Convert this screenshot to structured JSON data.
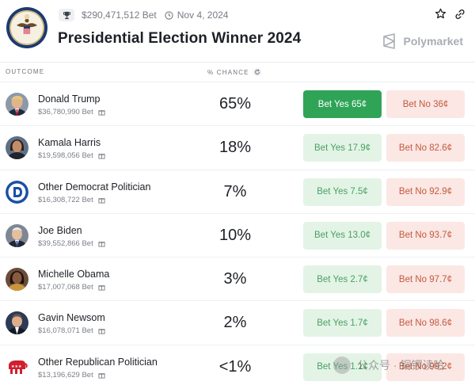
{
  "header": {
    "volume": "$290,471,512 Bet",
    "date": "Nov 4, 2024",
    "title": "Presidential Election Winner 2024",
    "brand": "Polymarket"
  },
  "columns": {
    "outcome": "OUTCOME",
    "chance": "% CHANCE"
  },
  "rows": [
    {
      "name": "Donald Trump",
      "volume": "$36,780,990 Bet",
      "chance": "65%",
      "yes": "Bet Yes 65¢",
      "no": "Bet No 36¢",
      "yes_active": true,
      "avatar": "donald-trump-avatar"
    },
    {
      "name": "Kamala Harris",
      "volume": "$19,598,056 Bet",
      "chance": "18%",
      "yes": "Bet Yes 17.9¢",
      "no": "Bet No 82.6¢",
      "yes_active": false,
      "avatar": "kamala-harris-avatar"
    },
    {
      "name": "Other Democrat Politician",
      "volume": "$16,308,722 Bet",
      "chance": "7%",
      "yes": "Bet Yes 7.5¢",
      "no": "Bet No 92.9¢",
      "yes_active": false,
      "avatar": "democrat-logo-icon"
    },
    {
      "name": "Joe Biden",
      "volume": "$39,552,866 Bet",
      "chance": "10%",
      "yes": "Bet Yes 13.0¢",
      "no": "Bet No 93.7¢",
      "yes_active": false,
      "avatar": "joe-biden-avatar"
    },
    {
      "name": "Michelle Obama",
      "volume": "$17,007,068 Bet",
      "chance": "3%",
      "yes": "Bet Yes 2.7¢",
      "no": "Bet No 97.7¢",
      "yes_active": false,
      "avatar": "michelle-obama-avatar"
    },
    {
      "name": "Gavin Newsom",
      "volume": "$16,078,071 Bet",
      "chance": "2%",
      "yes": "Bet Yes 1.7¢",
      "no": "Bet No 98.6¢",
      "yes_active": false,
      "avatar": "gavin-newsom-avatar"
    },
    {
      "name": "Other Republican Politician",
      "volume": "$13,196,629 Bet",
      "chance": "<1%",
      "yes": "Bet Yes 1.1¢",
      "no": "Bet No 99.2¢",
      "yes_active": false,
      "avatar": "republican-logo-icon"
    }
  ],
  "watermark": "公众号 · 铜锣读哈",
  "colors": {
    "yes_active": "#2fa457",
    "yes": "#e3f4e7",
    "no": "#fbe7e4",
    "yes_text": "#4a9f63",
    "no_text": "#c4593e"
  }
}
